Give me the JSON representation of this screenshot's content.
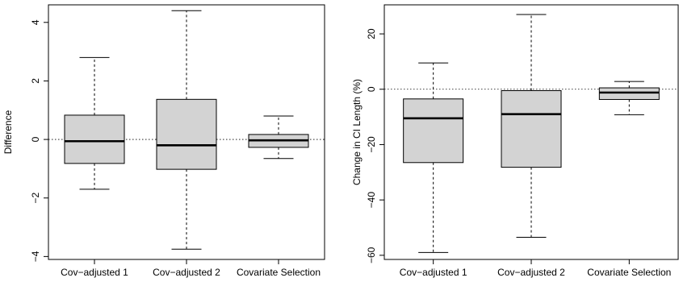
{
  "chart_data": [
    {
      "type": "box",
      "categories": [
        "Cov−adjusted 1",
        "Cov−adjusted 2",
        "Covariate Selection"
      ],
      "ylabel": "Difference",
      "xlabel": "",
      "ylim": [
        -4.1,
        4.6
      ],
      "yticks": [
        -4,
        -2,
        0,
        2,
        4
      ],
      "ytick_labels": [
        "−4",
        "−2",
        "0",
        "2",
        "4"
      ],
      "reference_line": 0,
      "boxes": [
        {
          "whisker_low": -1.7,
          "q1": -0.82,
          "median": -0.06,
          "q3": 0.83,
          "whisker_high": 2.8
        },
        {
          "whisker_low": -3.75,
          "q1": -1.02,
          "median": -0.2,
          "q3": 1.37,
          "whisker_high": 4.4
        },
        {
          "whisker_low": -0.65,
          "q1": -0.27,
          "median": -0.03,
          "q3": 0.17,
          "whisker_high": 0.8
        }
      ],
      "box_fill": "#d3d3d3",
      "grid": false
    },
    {
      "type": "box",
      "categories": [
        "Cov−adjusted 1",
        "Cov−adjusted 2",
        "Covariate Selection"
      ],
      "ylabel": "Change in CI Length (%)",
      "xlabel": "",
      "ylim": [
        -61.5,
        30.5
      ],
      "yticks": [
        -60,
        -40,
        -20,
        0,
        20
      ],
      "ytick_labels": [
        "−60",
        "−40",
        "−20",
        "0",
        "20"
      ],
      "reference_line": 0,
      "boxes": [
        {
          "whisker_low": -59,
          "q1": -26.5,
          "median": -10.5,
          "q3": -3.5,
          "whisker_high": 9.5
        },
        {
          "whisker_low": -53.5,
          "q1": -28.2,
          "median": -9,
          "q3": -0.5,
          "whisker_high": 27
        },
        {
          "whisker_low": -9.2,
          "q1": -3.7,
          "median": -1.2,
          "q3": 0.5,
          "whisker_high": 2.8
        }
      ],
      "box_fill": "#d3d3d3",
      "grid": false
    }
  ]
}
